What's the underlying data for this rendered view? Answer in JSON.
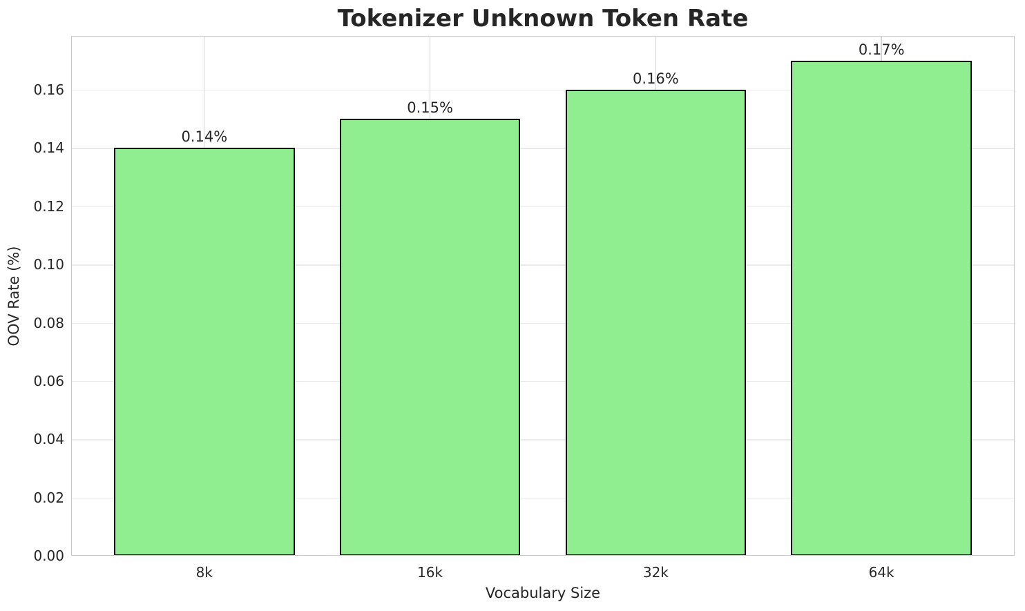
{
  "chart_data": {
    "type": "bar",
    "title": "Tokenizer Unknown Token Rate",
    "xlabel": "Vocabulary Size",
    "ylabel": "OOV Rate (%)",
    "categories": [
      "8k",
      "16k",
      "32k",
      "64k"
    ],
    "values": [
      0.14,
      0.15,
      0.16,
      0.17
    ],
    "bar_labels": [
      "0.14%",
      "0.15%",
      "0.16%",
      "0.17%"
    ],
    "yticks": [
      0.0,
      0.02,
      0.04,
      0.06,
      0.08,
      0.1,
      0.12,
      0.14,
      0.16
    ],
    "ytick_labels": [
      "0.00",
      "0.02",
      "0.04",
      "0.06",
      "0.08",
      "0.10",
      "0.12",
      "0.14",
      "0.16"
    ],
    "ylim": [
      0,
      0.1785
    ],
    "grid": true,
    "legend": null,
    "style": {
      "bar_color": "#90EE90",
      "bar_edge_color": "#000000",
      "grid_color_h": "#e9e9e9",
      "grid_color_v": "#d4d4d4",
      "spine_color": "#c9c9c9",
      "text_color": "#262626",
      "background": "#ffffff"
    }
  }
}
